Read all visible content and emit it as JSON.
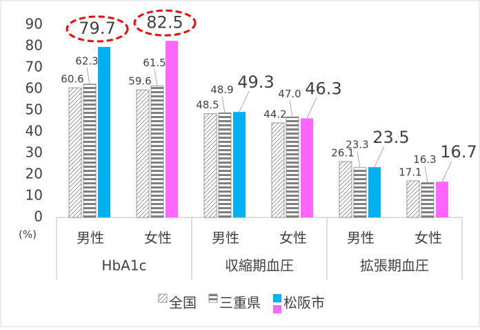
{
  "chart_data": {
    "type": "bar",
    "categories": [
      "男性",
      "女性",
      "男性",
      "女性",
      "男性",
      "女性"
    ],
    "groups": [
      "HbA1c",
      "収縮期血圧",
      "拡張期血圧"
    ],
    "unit_label": "(%)",
    "ylim": [
      0,
      90
    ],
    "yticks": [
      0,
      10,
      20,
      30,
      40,
      50,
      60,
      70,
      80,
      90
    ],
    "grid": false,
    "legend": "bottom",
    "series": [
      {
        "name": "全国",
        "color": "#7f7f7f",
        "pattern": "diagonal",
        "values": [
          60.6,
          59.6,
          48.5,
          44.2,
          26.1,
          17.1
        ]
      },
      {
        "name": "三重県",
        "color": "#7f7f7f",
        "pattern": "horizontal",
        "values": [
          62.3,
          61.5,
          48.9,
          47.0,
          23.3,
          16.3
        ],
        "value_labels": [
          "62.3",
          "61.5",
          "48.9",
          "47.0",
          "23.3",
          "16.3"
        ]
      },
      {
        "name": "松阪市",
        "colors": [
          "#00b0f0",
          "#ff66ff",
          "#00b0f0",
          "#ff66ff",
          "#00b0f0",
          "#ff66ff"
        ],
        "values": [
          79.7,
          82.5,
          49.3,
          46.3,
          23.5,
          16.7
        ]
      }
    ]
  }
}
